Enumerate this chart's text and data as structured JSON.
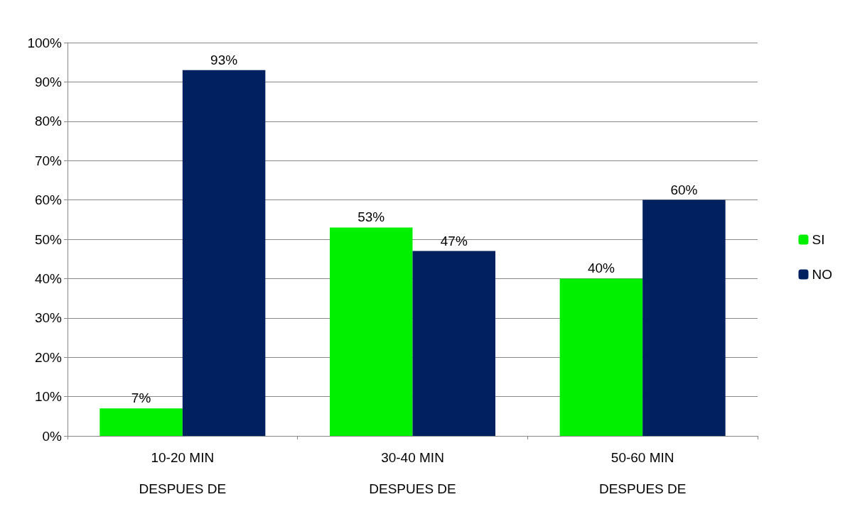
{
  "chart_data": {
    "type": "bar",
    "categories": [
      "10-20 MIN\nDESPUES DE",
      "30-40 MIN\nDESPUES DE",
      "50-60 MIN\nDESPUES DE"
    ],
    "series": [
      {
        "name": "SI",
        "color": "#00f000",
        "values": [
          7,
          53,
          40
        ],
        "value_labels": [
          "7%",
          "53%",
          "40%"
        ]
      },
      {
        "name": "NO",
        "color": "#002060",
        "values": [
          93,
          47,
          60
        ],
        "value_labels": [
          "93%",
          "47%",
          "60%"
        ]
      }
    ],
    "ylim": [
      0,
      100
    ],
    "yticks": [
      {
        "value": 0,
        "label": "0%"
      },
      {
        "value": 10,
        "label": "10%"
      },
      {
        "value": 20,
        "label": "20%"
      },
      {
        "value": 30,
        "label": "30%"
      },
      {
        "value": 40,
        "label": "40%"
      },
      {
        "value": 50,
        "label": "50%"
      },
      {
        "value": 60,
        "label": "60%"
      },
      {
        "value": 70,
        "label": "70%"
      },
      {
        "value": 80,
        "label": "80%"
      },
      {
        "value": 90,
        "label": "90%"
      },
      {
        "value": 100,
        "label": "100%"
      }
    ],
    "grid": "y",
    "legend": "right"
  }
}
